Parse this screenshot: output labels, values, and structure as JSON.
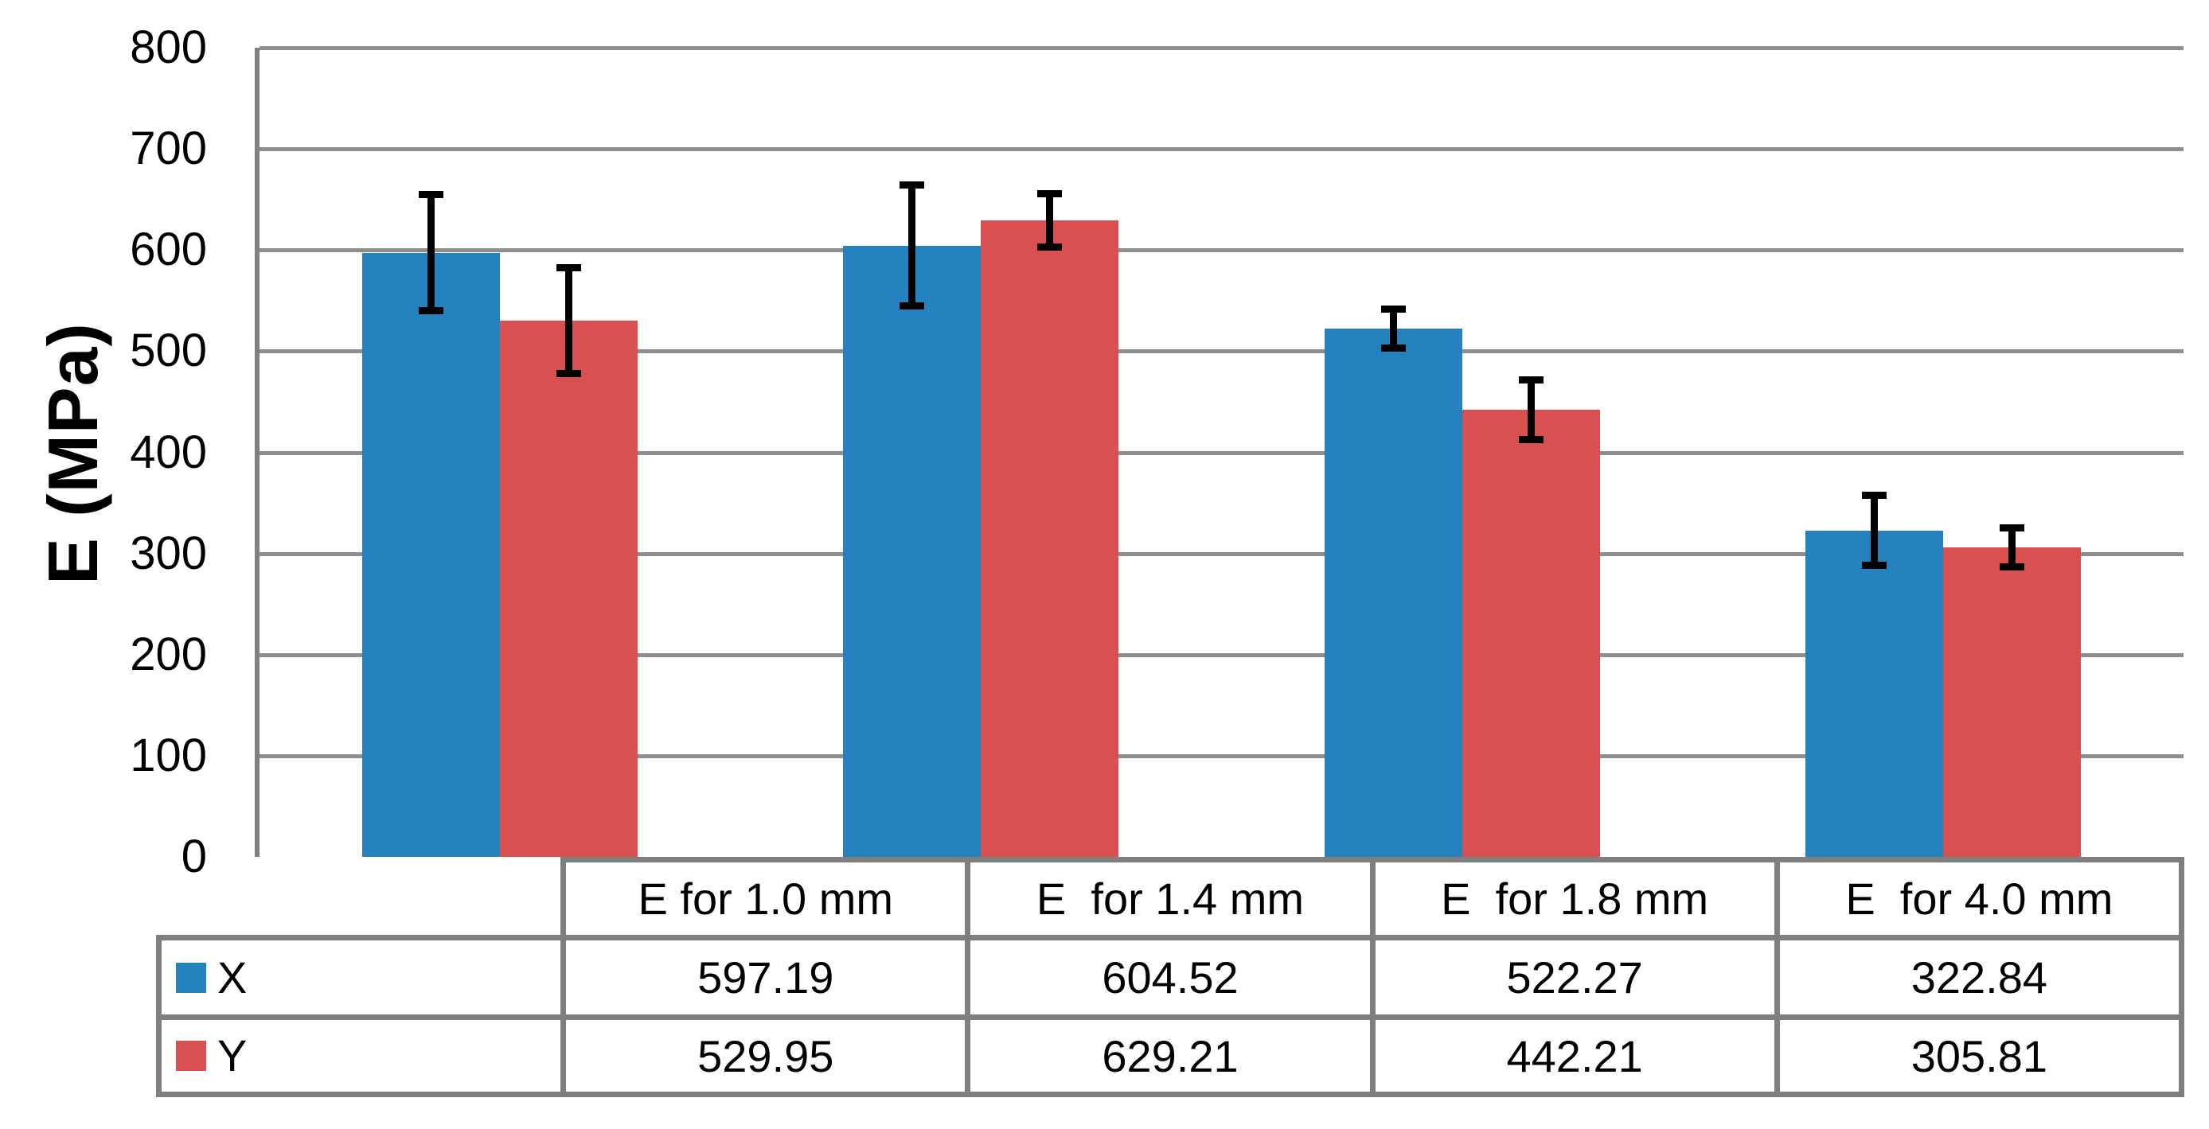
{
  "chart_data": {
    "type": "bar",
    "title": "",
    "xlabel": "",
    "ylabel": "E (MPa)",
    "ylim": [
      0,
      800
    ],
    "ytick_step": 100,
    "yticks": [
      800,
      700,
      600,
      500,
      400,
      300,
      200,
      100,
      0
    ],
    "grid": true,
    "legend_position": "table-left",
    "categories": [
      "E for 1.0 mm",
      "E  for 1.4 mm",
      "E  for 1.8 mm",
      "E  for 4.0 mm"
    ],
    "series": [
      {
        "name": "X",
        "color": "#2681BF",
        "values": [
          597.19,
          604.52,
          522.27,
          322.84
        ],
        "error_bars": [
          61,
          63,
          23,
          38
        ]
      },
      {
        "name": "Y",
        "color": "#D95050",
        "values": [
          529.95,
          629.21,
          442.21,
          305.81
        ],
        "error_bars": [
          56,
          30,
          33,
          23
        ]
      }
    ],
    "error_bar_color": "#000000",
    "colors": {
      "gridline": "#8E8E8E",
      "table_border": "#7F7F7F",
      "axis_line": "#808080"
    }
  }
}
